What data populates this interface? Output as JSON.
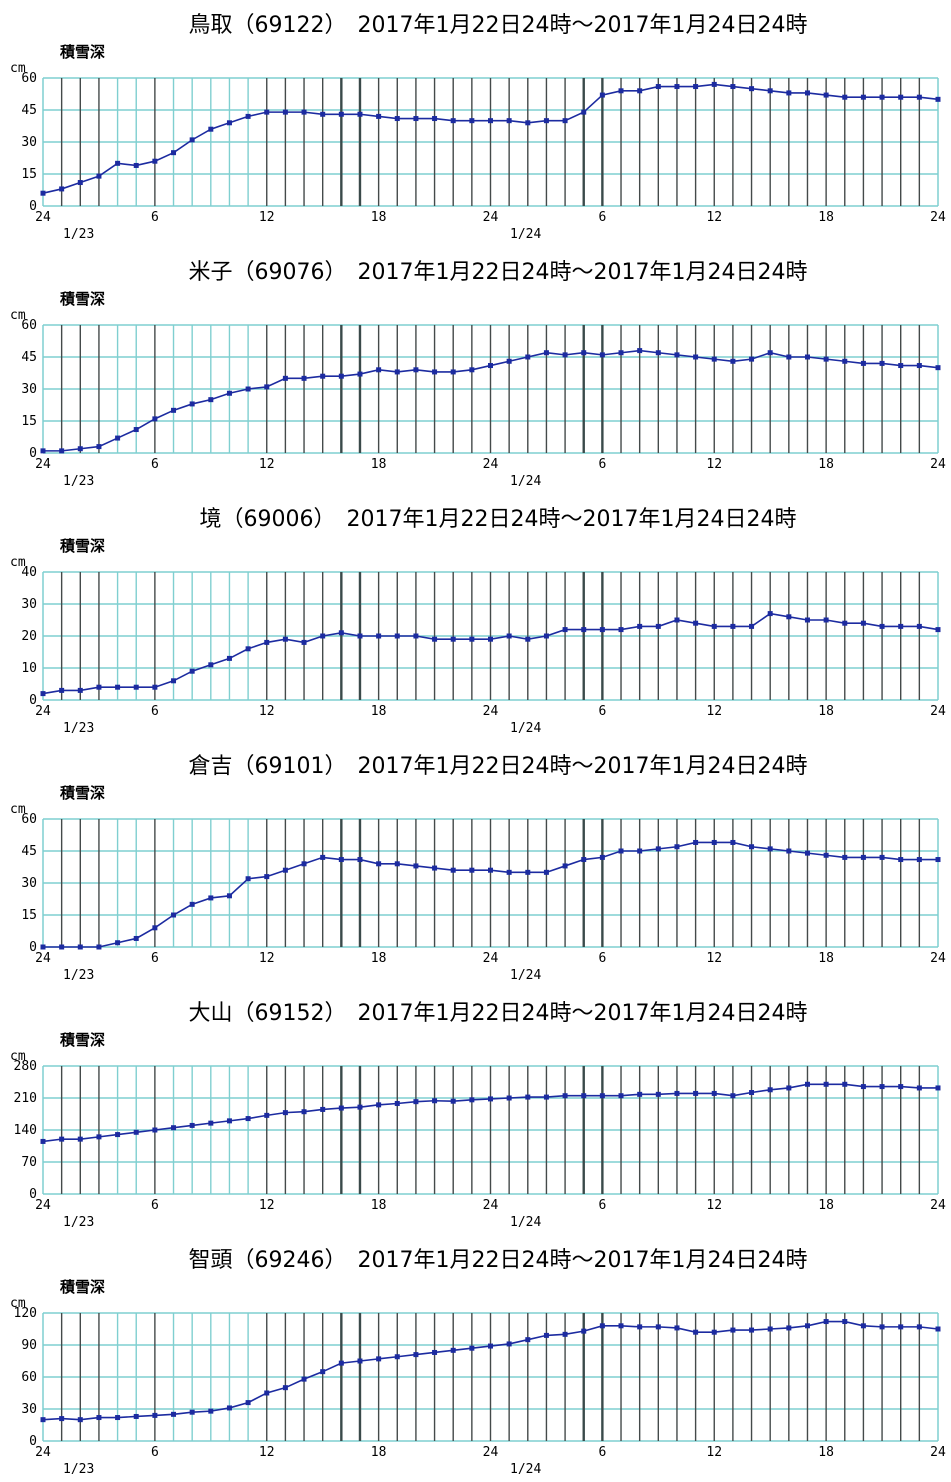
{
  "colors": {
    "line": "#1c2ba0",
    "grid_light": "#7fcfd0",
    "grid_dark": "#3a4a4a",
    "hgrid": "#7fcfd0",
    "frame": "#7fcfd0"
  },
  "chart_data": [
    {
      "type": "line",
      "title": "鳥取（69122）　2017年1月22日24時～2017年1月24日24時",
      "ylabel": "積雪深",
      "unit": "cm",
      "ylim": [
        0,
        60
      ],
      "yticks": [
        "0",
        "15",
        "30",
        "45",
        "60"
      ],
      "xticks": [
        "24",
        "6",
        "12",
        "18",
        "24",
        "6",
        "12",
        "18",
        "24"
      ],
      "dates": [
        "1/23",
        "1/24"
      ],
      "x": [
        0,
        1,
        2,
        3,
        4,
        5,
        6,
        7,
        8,
        9,
        10,
        11,
        12,
        13,
        14,
        15,
        16,
        17,
        18,
        19,
        20,
        21,
        22,
        23,
        24,
        25,
        26,
        27,
        28,
        29,
        30,
        31,
        32,
        33,
        34,
        35,
        36,
        37,
        38,
        39,
        40,
        41,
        42,
        43,
        44,
        45,
        46,
        47,
        48
      ],
      "values": [
        6,
        8,
        11,
        14,
        20,
        19,
        21,
        25,
        31,
        36,
        39,
        42,
        44,
        44,
        44,
        43,
        43,
        43,
        42,
        41,
        41,
        41,
        40,
        40,
        40,
        40,
        39,
        40,
        40,
        44,
        52,
        54,
        54,
        56,
        56,
        56,
        57,
        56,
        55,
        54,
        53,
        53,
        52,
        51,
        51,
        51,
        51,
        51,
        50
      ]
    },
    {
      "type": "line",
      "title": "米子（69076）　2017年1月22日24時～2017年1月24日24時",
      "ylabel": "積雪深",
      "unit": "cm",
      "ylim": [
        0,
        60
      ],
      "yticks": [
        "0",
        "15",
        "30",
        "45",
        "60"
      ],
      "xticks": [
        "24",
        "6",
        "12",
        "18",
        "24",
        "6",
        "12",
        "18",
        "24"
      ],
      "dates": [
        "1/23",
        "1/24"
      ],
      "x": [
        0,
        1,
        2,
        3,
        4,
        5,
        6,
        7,
        8,
        9,
        10,
        11,
        12,
        13,
        14,
        15,
        16,
        17,
        18,
        19,
        20,
        21,
        22,
        23,
        24,
        25,
        26,
        27,
        28,
        29,
        30,
        31,
        32,
        33,
        34,
        35,
        36,
        37,
        38,
        39,
        40,
        41,
        42,
        43,
        44,
        45,
        46,
        47,
        48
      ],
      "values": [
        1,
        1,
        2,
        3,
        7,
        11,
        16,
        20,
        23,
        25,
        28,
        30,
        31,
        35,
        35,
        36,
        36,
        37,
        39,
        38,
        39,
        38,
        38,
        39,
        41,
        43,
        45,
        47,
        46,
        47,
        46,
        47,
        48,
        47,
        46,
        45,
        44,
        43,
        44,
        47,
        45,
        45,
        44,
        43,
        42,
        42,
        41,
        41,
        40
      ]
    },
    {
      "type": "line",
      "title": "境（69006）　2017年1月22日24時～2017年1月24日24時",
      "ylabel": "積雪深",
      "unit": "cm",
      "ylim": [
        0,
        40
      ],
      "yticks": [
        "0",
        "10",
        "20",
        "30",
        "40"
      ],
      "xticks": [
        "24",
        "6",
        "12",
        "18",
        "24",
        "6",
        "12",
        "18",
        "24"
      ],
      "dates": [
        "1/23",
        "1/24"
      ],
      "x": [
        0,
        1,
        2,
        3,
        4,
        5,
        6,
        7,
        8,
        9,
        10,
        11,
        12,
        13,
        14,
        15,
        16,
        17,
        18,
        19,
        20,
        21,
        22,
        23,
        24,
        25,
        26,
        27,
        28,
        29,
        30,
        31,
        32,
        33,
        34,
        35,
        36,
        37,
        38,
        39,
        40,
        41,
        42,
        43,
        44,
        45,
        46,
        47,
        48
      ],
      "values": [
        2,
        3,
        3,
        4,
        4,
        4,
        4,
        6,
        9,
        11,
        13,
        16,
        18,
        19,
        18,
        20,
        21,
        20,
        20,
        20,
        20,
        19,
        19,
        19,
        19,
        20,
        19,
        20,
        22,
        22,
        22,
        22,
        23,
        23,
        25,
        24,
        23,
        23,
        23,
        27,
        26,
        25,
        25,
        24,
        24,
        23,
        23,
        23,
        22
      ]
    },
    {
      "type": "line",
      "title": "倉吉（69101）　2017年1月22日24時～2017年1月24日24時",
      "ylabel": "積雪深",
      "unit": "cm",
      "ylim": [
        0,
        60
      ],
      "yticks": [
        "0",
        "15",
        "30",
        "45",
        "60"
      ],
      "xticks": [
        "24",
        "6",
        "12",
        "18",
        "24",
        "6",
        "12",
        "18",
        "24"
      ],
      "dates": [
        "1/23",
        "1/24"
      ],
      "x": [
        0,
        1,
        2,
        3,
        4,
        5,
        6,
        7,
        8,
        9,
        10,
        11,
        12,
        13,
        14,
        15,
        16,
        17,
        18,
        19,
        20,
        21,
        22,
        23,
        24,
        25,
        26,
        27,
        28,
        29,
        30,
        31,
        32,
        33,
        34,
        35,
        36,
        37,
        38,
        39,
        40,
        41,
        42,
        43,
        44,
        45,
        46,
        47,
        48
      ],
      "values": [
        0,
        0,
        0,
        0,
        2,
        4,
        9,
        15,
        20,
        23,
        24,
        32,
        33,
        36,
        39,
        42,
        41,
        41,
        39,
        39,
        38,
        37,
        36,
        36,
        36,
        35,
        35,
        35,
        38,
        41,
        42,
        45,
        45,
        46,
        47,
        49,
        49,
        49,
        47,
        46,
        45,
        44,
        43,
        42,
        42,
        42,
        41,
        41,
        41
      ]
    },
    {
      "type": "line",
      "title": "大山（69152）　2017年1月22日24時～2017年1月24日24時",
      "ylabel": "積雪深",
      "unit": "cm",
      "ylim": [
        0,
        280
      ],
      "yticks": [
        "0",
        "70",
        "140",
        "210",
        "280"
      ],
      "xticks": [
        "24",
        "6",
        "12",
        "18",
        "24",
        "6",
        "12",
        "18",
        "24"
      ],
      "dates": [
        "1/23",
        "1/24"
      ],
      "x": [
        0,
        1,
        2,
        3,
        4,
        5,
        6,
        7,
        8,
        9,
        10,
        11,
        12,
        13,
        14,
        15,
        16,
        17,
        18,
        19,
        20,
        21,
        22,
        23,
        24,
        25,
        26,
        27,
        28,
        29,
        30,
        31,
        32,
        33,
        34,
        35,
        36,
        37,
        38,
        39,
        40,
        41,
        42,
        43,
        44,
        45,
        46,
        47,
        48
      ],
      "values": [
        115,
        120,
        120,
        125,
        130,
        135,
        140,
        145,
        150,
        155,
        160,
        165,
        172,
        178,
        180,
        185,
        188,
        190,
        195,
        198,
        202,
        204,
        203,
        206,
        208,
        210,
        212,
        212,
        215,
        215,
        215,
        215,
        218,
        218,
        220,
        220,
        220,
        215,
        222,
        228,
        232,
        240,
        240,
        240,
        235,
        235,
        235,
        232,
        232
      ]
    },
    {
      "type": "line",
      "title": "智頭（69246）　2017年1月22日24時～2017年1月24日24時",
      "ylabel": "積雪深",
      "unit": "cm",
      "ylim": [
        0,
        120
      ],
      "yticks": [
        "0",
        "30",
        "60",
        "90",
        "120"
      ],
      "xticks": [
        "24",
        "6",
        "12",
        "18",
        "24",
        "6",
        "12",
        "18",
        "24"
      ],
      "dates": [
        "1/23",
        "1/24"
      ],
      "x": [
        0,
        1,
        2,
        3,
        4,
        5,
        6,
        7,
        8,
        9,
        10,
        11,
        12,
        13,
        14,
        15,
        16,
        17,
        18,
        19,
        20,
        21,
        22,
        23,
        24,
        25,
        26,
        27,
        28,
        29,
        30,
        31,
        32,
        33,
        34,
        35,
        36,
        37,
        38,
        39,
        40,
        41,
        42,
        43,
        44,
        45,
        46,
        47,
        48
      ],
      "values": [
        20,
        21,
        20,
        22,
        22,
        23,
        24,
        25,
        27,
        28,
        31,
        36,
        45,
        50,
        58,
        65,
        73,
        75,
        77,
        79,
        81,
        83,
        85,
        87,
        89,
        91,
        95,
        99,
        100,
        103,
        108,
        108,
        107,
        107,
        106,
        102,
        102,
        104,
        104,
        105,
        106,
        108,
        112,
        112,
        108,
        107,
        107,
        107,
        105
      ]
    }
  ]
}
